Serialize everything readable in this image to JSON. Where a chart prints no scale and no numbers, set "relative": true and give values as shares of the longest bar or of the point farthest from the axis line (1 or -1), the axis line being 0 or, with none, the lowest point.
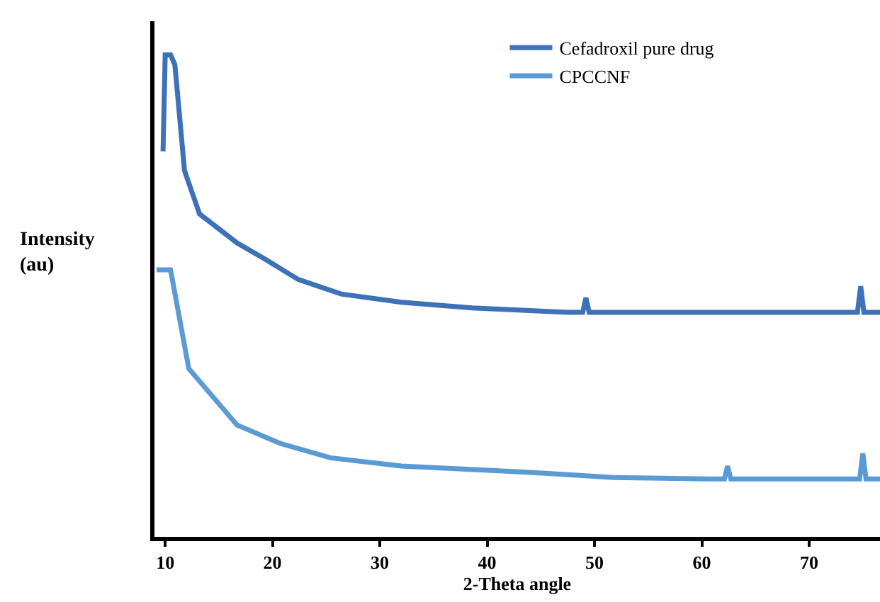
{
  "chart_data": {
    "type": "line",
    "relative": true,
    "xlabel": "2-Theta angle",
    "ylabel": "Intensity\n(au)",
    "xlim": [
      9,
      76.6
    ],
    "xticks": [
      10,
      20,
      30,
      40,
      50,
      60,
      70
    ],
    "legend": "top right",
    "series": [
      {
        "name": "Cefadroxil pure drug",
        "color": "#3d72b8",
        "x": [
          9.8,
          10.0,
          10.5,
          10.9,
          11.8,
          13.2,
          16.7,
          19.4,
          22.4,
          26.4,
          32,
          38.6,
          47.5,
          48.9,
          49.2,
          49.5,
          56.3,
          73.9,
          74.5,
          74.8,
          75.1,
          76.6
        ],
        "values": [
          0.8,
          1.0,
          1.0,
          0.98,
          0.76,
          0.67,
          0.61,
          0.575,
          0.534,
          0.504,
          0.487,
          0.475,
          0.466,
          0.466,
          0.496,
          0.466,
          0.466,
          0.466,
          0.466,
          0.52,
          0.466,
          0.466
        ]
      },
      {
        "name": "CPCCNF",
        "color": "#5b9bd5",
        "x": [
          9.2,
          10.5,
          12.2,
          16.7,
          20.7,
          25.4,
          32,
          43.1,
          51.8,
          60.7,
          62.1,
          62.4,
          62.7,
          73.9,
          74.7,
          75.0,
          75.3,
          76.6
        ],
        "values": [
          0.554,
          0.554,
          0.349,
          0.232,
          0.194,
          0.164,
          0.147,
          0.135,
          0.123,
          0.12,
          0.12,
          0.147,
          0.12,
          0.12,
          0.12,
          0.173,
          0.12,
          0.12
        ]
      }
    ]
  }
}
